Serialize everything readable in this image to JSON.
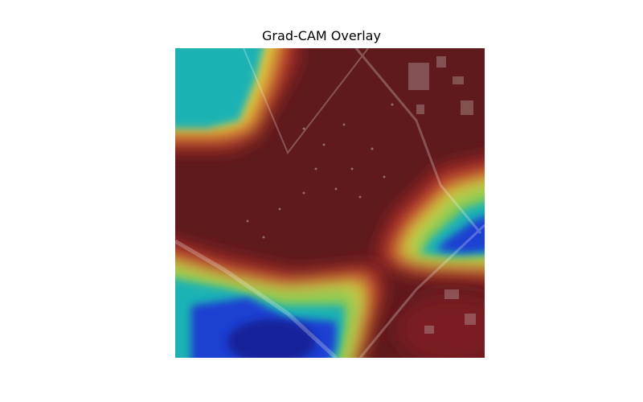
{
  "figure": {
    "title": "Grad-CAM Overlay"
  },
  "image": {
    "kind": "aerial satellite photo with Grad-CAM heatmap overlay",
    "colormap": "jet",
    "colors": {
      "hot": "#5e1a1c",
      "red": "#b22a2a",
      "yellow": "#e6d23c",
      "green": "#78c85a",
      "cyan": "#1fb2b4",
      "blue": "#1b3fd2",
      "deep_blue": "#16209a"
    }
  }
}
